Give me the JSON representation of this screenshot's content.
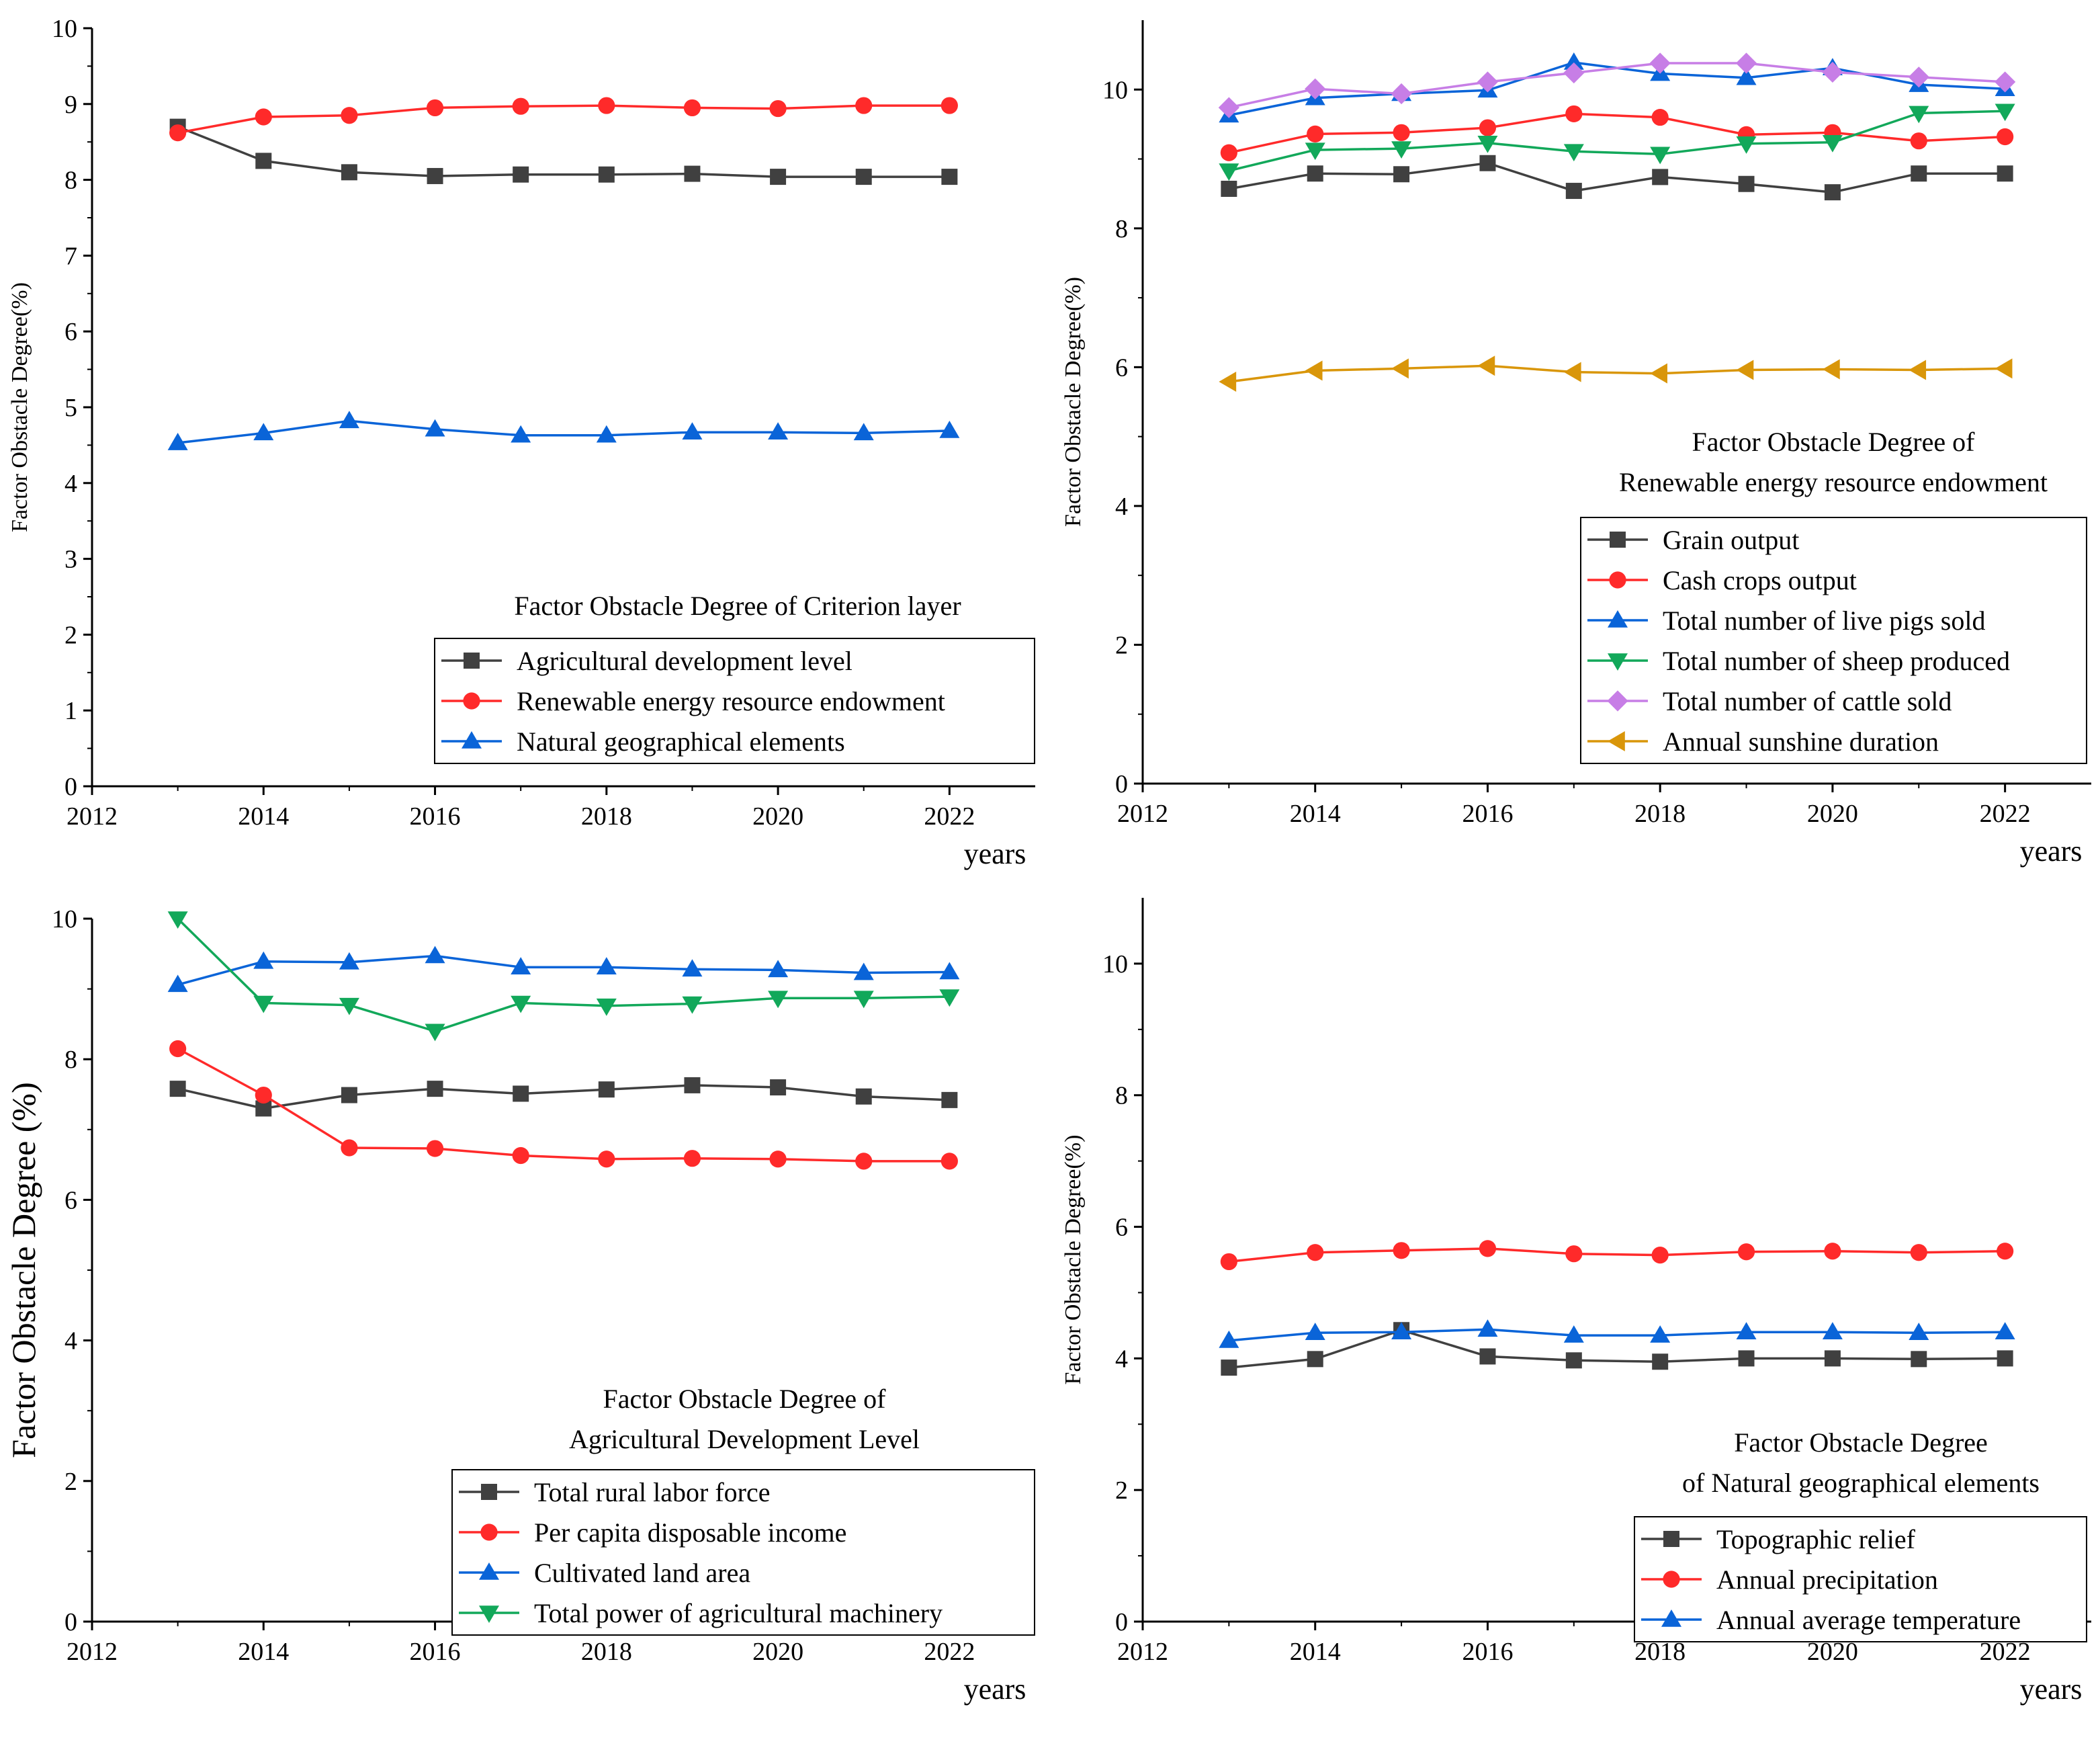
{
  "chart_data": [
    {
      "type": "line",
      "title": "",
      "xlabel": "years",
      "ylabel": "Factor Obstacle Degree(%)",
      "xlim": [
        2012,
        2023
      ],
      "ylim": [
        0,
        10
      ],
      "xticks": [
        2012,
        2014,
        2016,
        2018,
        2020,
        2022
      ],
      "yticks": [
        0,
        1,
        2,
        3,
        4,
        5,
        6,
        7,
        8,
        9,
        10
      ],
      "legend_title": [
        "Factor Obstacle Degree of Criterion layer"
      ],
      "legend_position": "bottom-right",
      "x": [
        2013,
        2014,
        2015,
        2016,
        2017,
        2018,
        2019,
        2020,
        2021,
        2022
      ],
      "series": [
        {
          "name": "Agricultural development level",
          "color": "#404040",
          "marker": "square",
          "values": [
            8.7,
            8.25,
            8.1,
            8.05,
            8.07,
            8.07,
            8.08,
            8.04,
            8.04,
            8.04
          ]
        },
        {
          "name": "Renewable energy resource endowment",
          "color": "#ff2a2a",
          "marker": "circle",
          "values": [
            8.62,
            8.83,
            8.85,
            8.95,
            8.97,
            8.98,
            8.95,
            8.94,
            8.98,
            8.98
          ]
        },
        {
          "name": "Natural geographical elements",
          "color": "#0a64d8",
          "marker": "triangle-up",
          "values": [
            4.53,
            4.66,
            4.82,
            4.71,
            4.63,
            4.63,
            4.67,
            4.67,
            4.66,
            4.69
          ]
        }
      ]
    },
    {
      "type": "line",
      "title": "",
      "xlabel": "years",
      "ylabel": "Factor Obstacle Degree(%)",
      "xlim": [
        2012,
        2023
      ],
      "ylim": [
        0,
        11
      ],
      "xticks": [
        2012,
        2014,
        2016,
        2018,
        2020,
        2022
      ],
      "yticks": [
        0,
        2,
        4,
        6,
        8,
        10
      ],
      "legend_title": [
        "Factor Obstacle Degree of",
        "Renewable energy resource endowment"
      ],
      "legend_position": "bottom-right",
      "x": [
        2013,
        2014,
        2015,
        2016,
        2017,
        2018,
        2019,
        2020,
        2021,
        2022
      ],
      "series": [
        {
          "name": "Grain output",
          "color": "#404040",
          "marker": "square",
          "values": [
            8.57,
            8.79,
            8.78,
            8.94,
            8.54,
            8.74,
            8.64,
            8.52,
            8.79,
            8.79
          ]
        },
        {
          "name": "Cash crops output",
          "color": "#ff2a2a",
          "marker": "circle",
          "values": [
            9.09,
            9.36,
            9.38,
            9.45,
            9.65,
            9.6,
            9.35,
            9.38,
            9.26,
            9.32
          ]
        },
        {
          "name": "Total number of live pigs sold",
          "color": "#0a64d8",
          "marker": "triangle-up",
          "values": [
            9.63,
            9.88,
            9.94,
            9.99,
            10.39,
            10.23,
            10.17,
            10.31,
            10.07,
            10.01
          ]
        },
        {
          "name": "Total number of sheep produced",
          "color": "#12a85a",
          "marker": "triangle-down",
          "values": [
            8.83,
            9.13,
            9.15,
            9.23,
            9.11,
            9.07,
            9.22,
            9.24,
            9.66,
            9.69
          ]
        },
        {
          "name": "Total number of cattle sold",
          "color": "#c77ee6",
          "marker": "diamond",
          "values": [
            9.74,
            10.01,
            9.94,
            10.11,
            10.24,
            10.38,
            10.38,
            10.25,
            10.18,
            10.11
          ]
        },
        {
          "name": "Annual sunshine duration",
          "color": "#d9960a",
          "marker": "triangle-left",
          "values": [
            5.79,
            5.95,
            5.98,
            6.02,
            5.93,
            5.91,
            5.96,
            5.97,
            5.96,
            5.98
          ]
        }
      ]
    },
    {
      "type": "line",
      "title": "",
      "xlabel": "years",
      "ylabel": "Factor Obstacle Degree (%)",
      "xlim": [
        2012,
        2023
      ],
      "ylim": [
        0,
        10
      ],
      "xticks": [
        2012,
        2014,
        2016,
        2018,
        2020,
        2022
      ],
      "yticks": [
        0,
        2,
        4,
        6,
        8,
        10
      ],
      "legend_title": [
        "Factor Obstacle Degree of",
        "Agricultural Development Level"
      ],
      "legend_position": "bottom-right",
      "x": [
        2013,
        2014,
        2015,
        2016,
        2017,
        2018,
        2019,
        2020,
        2021,
        2022
      ],
      "series": [
        {
          "name": "Total rural labor force",
          "color": "#404040",
          "marker": "square",
          "values": [
            7.58,
            7.3,
            7.49,
            7.58,
            7.51,
            7.57,
            7.63,
            7.6,
            7.47,
            7.42
          ]
        },
        {
          "name": "Per capita disposable income",
          "color": "#ff2a2a",
          "marker": "circle",
          "values": [
            8.15,
            7.49,
            6.74,
            6.73,
            6.63,
            6.58,
            6.59,
            6.58,
            6.55,
            6.55
          ]
        },
        {
          "name": "Cultivated land area",
          "color": "#0a64d8",
          "marker": "triangle-up",
          "values": [
            9.06,
            9.39,
            9.38,
            9.47,
            9.31,
            9.31,
            9.28,
            9.27,
            9.23,
            9.24
          ]
        },
        {
          "name": "Total power of agricultural machinery",
          "color": "#12a85a",
          "marker": "triangle-down",
          "values": [
            10.0,
            8.8,
            8.77,
            8.4,
            8.8,
            8.76,
            8.79,
            8.87,
            8.87,
            8.89
          ]
        }
      ]
    },
    {
      "type": "line",
      "title": "",
      "xlabel": "years",
      "ylabel": "Factor Obstacle Degree(%)",
      "xlim": [
        2012,
        2023
      ],
      "ylim": [
        0,
        11
      ],
      "xticks": [
        2012,
        2014,
        2016,
        2018,
        2020,
        2022
      ],
      "yticks": [
        0,
        2,
        4,
        6,
        8,
        10
      ],
      "legend_title": [
        "Factor Obstacle Degree",
        "of Natural geographical elements"
      ],
      "legend_position": "bottom-right",
      "x": [
        2013,
        2014,
        2015,
        2016,
        2017,
        2018,
        2019,
        2020,
        2021,
        2022
      ],
      "series": [
        {
          "name": "Topographic relief",
          "color": "#404040",
          "marker": "square",
          "values": [
            3.86,
            3.99,
            4.43,
            4.03,
            3.97,
            3.95,
            4.0,
            4.0,
            3.99,
            4.0
          ]
        },
        {
          "name": "Annual precipitation",
          "color": "#ff2a2a",
          "marker": "circle",
          "values": [
            5.47,
            5.61,
            5.64,
            5.67,
            5.59,
            5.57,
            5.62,
            5.63,
            5.61,
            5.63
          ]
        },
        {
          "name": "Annual average temperature",
          "color": "#0a64d8",
          "marker": "triangle-up",
          "values": [
            4.27,
            4.39,
            4.4,
            4.44,
            4.35,
            4.35,
            4.4,
            4.4,
            4.39,
            4.4
          ]
        }
      ]
    }
  ]
}
